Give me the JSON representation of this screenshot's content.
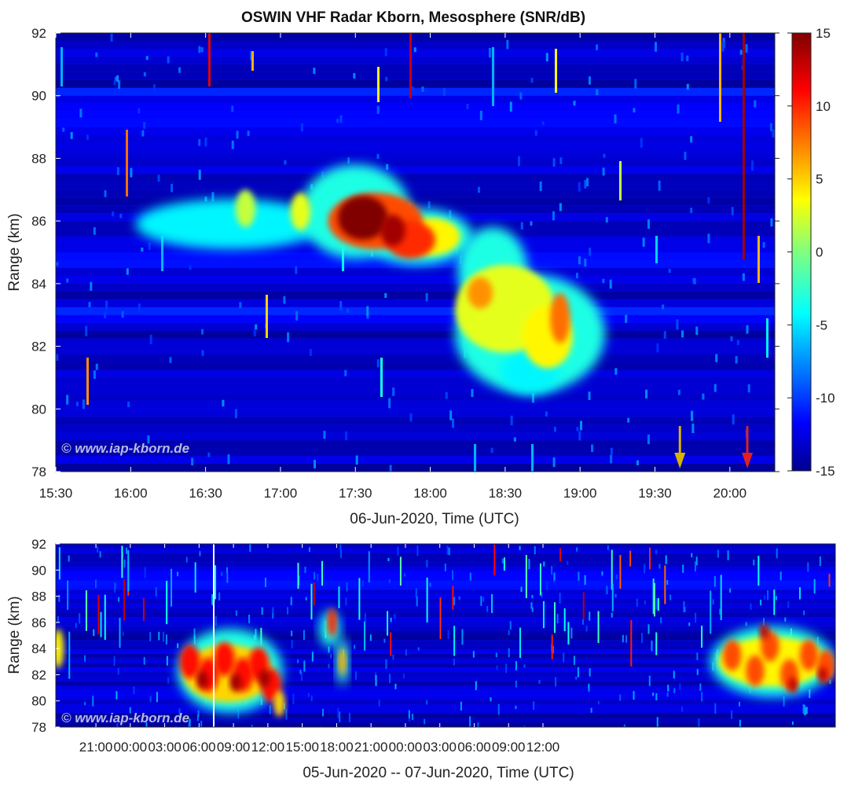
{
  "title": "OSWIN VHF Radar Kborn, Mesosphere (SNR/dB)",
  "watermark": "© www.iap-kborn.de",
  "chart_data": [
    {
      "type": "heatmap",
      "title": "OSWIN VHF Radar Kborn, Mesosphere (SNR/dB)",
      "xlabel": "06-Jun-2020, Time (UTC)",
      "ylabel": "Range (km)",
      "xlim": [
        "15:30",
        "20:18"
      ],
      "ylim": [
        78,
        92
      ],
      "x_ticks": [
        "15:30",
        "16:00",
        "16:30",
        "17:00",
        "17:30",
        "18:00",
        "18:30",
        "19:00",
        "19:30",
        "20:00"
      ],
      "y_ticks": [
        "78",
        "80",
        "82",
        "84",
        "86",
        "88",
        "90",
        "92"
      ],
      "colorbar": {
        "colormap": "jet",
        "label": "SNR/dB",
        "range": [
          -15,
          15
        ],
        "ticks": [
          "15",
          "10",
          "5",
          "0",
          "-5",
          "-10",
          "-15"
        ]
      },
      "background_snr_db": -13,
      "echo_regions": [
        {
          "t_start": "16:05",
          "t_end": "17:20",
          "range_km": [
            85.2,
            86.6
          ],
          "snr_db": -3
        },
        {
          "t_start": "17:15",
          "t_end": "18:10",
          "range_km": [
            85.0,
            87.3
          ],
          "snr_db": 13
        },
        {
          "t_start": "17:20",
          "t_end": "17:45",
          "range_km": [
            86.0,
            87.8
          ],
          "snr_db": -4
        },
        {
          "t_start": "18:05",
          "t_end": "18:40",
          "range_km": [
            83.5,
            86.0
          ],
          "snr_db": 2
        },
        {
          "t_start": "18:10",
          "t_end": "19:20",
          "range_km": [
            80.8,
            84.4
          ],
          "snr_db": 4
        }
      ],
      "arrows": [
        {
          "time": "19:40",
          "color": "#d8b400"
        },
        {
          "time": "20:07",
          "color": "#e02020"
        }
      ]
    },
    {
      "type": "heatmap",
      "xlabel": "05-Jun-2020 -- 07-Jun-2020, Time (UTC)",
      "ylabel": "Range (km)",
      "xlim_hours": [
        -6.5,
        61.5
      ],
      "ylim": [
        78,
        92
      ],
      "x_ticks": [
        "21:00",
        "00:00",
        "03:00",
        "06:00",
        "09:00",
        "12:00",
        "15:00",
        "18:00",
        "21:00",
        "00:00",
        "03:00",
        "06:00",
        "09:00",
        "12:00"
      ],
      "y_ticks": [
        "78",
        "80",
        "82",
        "84",
        "86",
        "88",
        "90",
        "92"
      ],
      "data_gap_hours": 3.0,
      "echo_regions": [
        {
          "t_start_h": 4.2,
          "t_end_h": 13.2,
          "range_km": [
            79.2,
            85.3
          ],
          "snr_db": 10
        },
        {
          "t_start_h": 16.8,
          "t_end_h": 19.0,
          "range_km": [
            81.0,
            87.5
          ],
          "snr_db": 8
        },
        {
          "t_start_h": 50.5,
          "t_end_h": 61.0,
          "range_km": [
            79.8,
            86.5
          ],
          "snr_db": 8
        },
        {
          "t_start_h": -6.5,
          "t_end_h": -5.8,
          "range_km": [
            82.5,
            85.8
          ],
          "snr_db": 3
        }
      ]
    }
  ]
}
